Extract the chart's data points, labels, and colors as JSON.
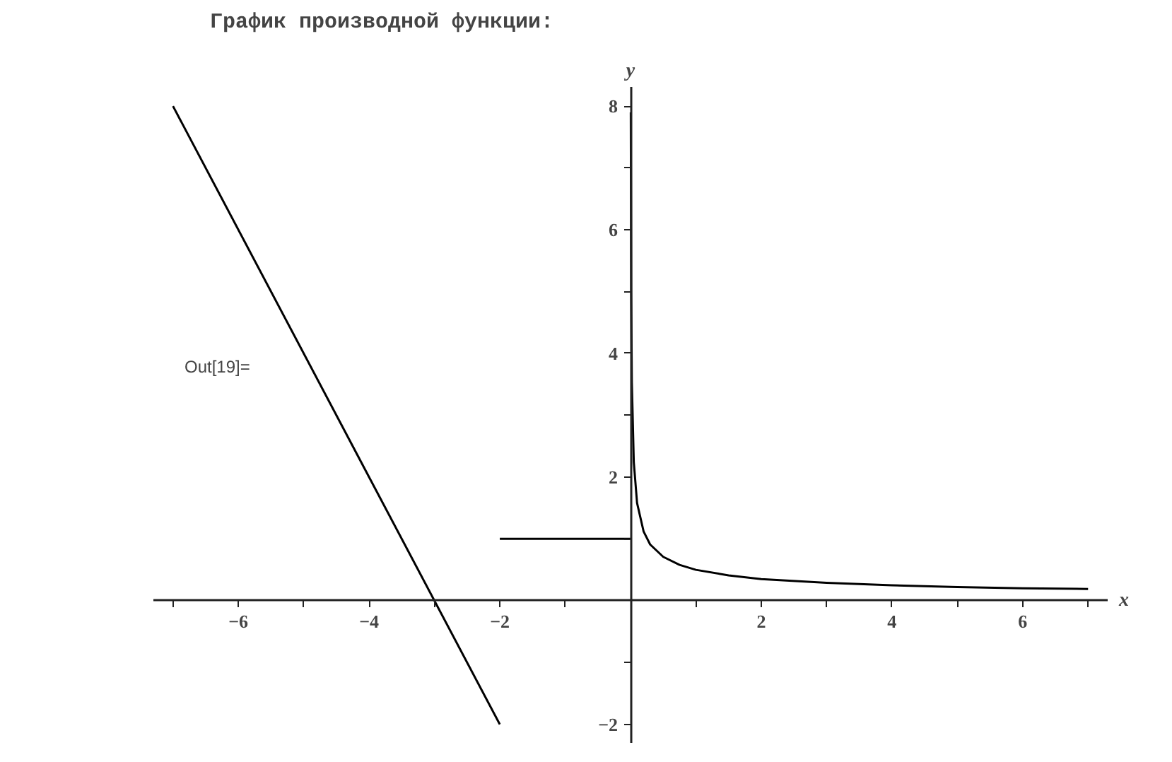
{
  "chart_data": {
    "type": "line",
    "title": "График производной функции:",
    "xlabel": "x",
    "ylabel": "y",
    "annotations": [
      "Out[19]="
    ],
    "series": [
      {
        "color": "#000000",
        "x": [
          -7,
          -2
        ],
        "values": [
          8,
          -2
        ]
      },
      {
        "color": "#000000",
        "x": [
          -2,
          0
        ],
        "values": [
          1,
          1
        ]
      },
      {
        "color": "#000000",
        "x": [
          0.004,
          0.01,
          0.02,
          0.05,
          0.1,
          0.2,
          0.3,
          0.5,
          0.75,
          1,
          1.5,
          2,
          3,
          4,
          5,
          6,
          7
        ],
        "values": [
          7.9,
          5,
          3.54,
          2.24,
          1.58,
          1.12,
          0.91,
          0.71,
          0.58,
          0.5,
          0.41,
          0.35,
          0.29,
          0.25,
          0.22,
          0.2,
          0.19
        ]
      }
    ],
    "xlim": [
      -7.3,
      7.3
    ],
    "ylim": [
      -2.3,
      8.3
    ],
    "xticks": [
      {
        "value": -7,
        "label": null
      },
      -6,
      {
        "value": -5,
        "label": null
      },
      -4,
      {
        "value": -3,
        "label": null
      },
      -2,
      {
        "value": -1,
        "label": null
      },
      {
        "value": 1,
        "label": null
      },
      2,
      {
        "value": 3,
        "label": null
      },
      4,
      {
        "value": 5,
        "label": null
      },
      6,
      {
        "value": 7,
        "label": null
      }
    ],
    "yticks": [
      -2,
      {
        "value": -1,
        "label": null
      },
      {
        "value": 1,
        "label": null
      },
      2,
      {
        "value": 3,
        "label": null
      },
      4,
      {
        "value": 5,
        "label": null
      },
      6,
      {
        "value": 7,
        "label": null
      },
      8
    ],
    "grid": false,
    "marker": "none",
    "line_style": "solid"
  }
}
